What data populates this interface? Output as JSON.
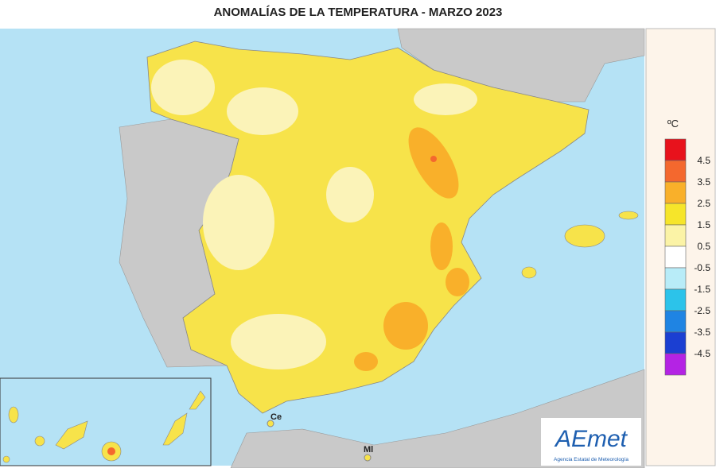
{
  "header": {
    "title": "ANOMALÍAS DE LA TEMPERATURA - MARZO 2023"
  },
  "map": {
    "places": [
      "Ce",
      "Ml"
    ]
  },
  "legend": {
    "unit": "ºC",
    "labels": [
      4.5,
      3.5,
      2.5,
      1.5,
      0.5,
      -0.5,
      -1.5,
      -2.5,
      -3.5,
      -4.5
    ],
    "colors": [
      "#e8121c",
      "#f4682e",
      "#f9b02a",
      "#f6e52a",
      "#fbf3a6",
      "#ffffff",
      "#b8ecf8",
      "#2cc3ea",
      "#1f84e3",
      "#1b3fd2",
      "#b423e4"
    ]
  },
  "logo": {
    "name": "AEmet",
    "subtitle": "Agencia Estatal de Meteorología"
  }
}
